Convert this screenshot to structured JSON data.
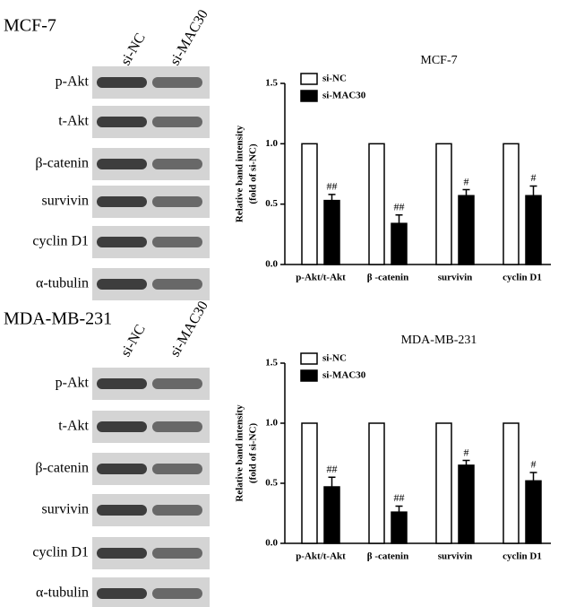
{
  "blots": [
    {
      "title": "MCF-7",
      "lanes": [
        "si-NC",
        "si-MAC30"
      ],
      "proteins": [
        "p-Akt",
        "t-Akt",
        "β-catenin",
        "survivin",
        "cyclin D1",
        "α-tubulin"
      ]
    },
    {
      "title": "MDA-MB-231",
      "lanes": [
        "si-NC",
        "si-MAC30"
      ],
      "proteins": [
        "p-Akt",
        "t-Akt",
        "β-catenin",
        "survivin",
        "cyclin D1",
        "α-tubulin"
      ]
    }
  ],
  "chart_data": [
    {
      "type": "bar",
      "title": "MCF-7",
      "ylabel": [
        "Relative band intensity",
        "(fold of si-NC)"
      ],
      "categories": [
        "p-Akt/t-Akt",
        "β -catenin",
        "survivin",
        "cyclin D1"
      ],
      "series": [
        {
          "name": "si-NC",
          "color": "#ffffff",
          "values": [
            1.0,
            1.0,
            1.0,
            1.0
          ]
        },
        {
          "name": "si-MAC30",
          "color": "#000000",
          "values": [
            0.53,
            0.34,
            0.57,
            0.57
          ],
          "errors": [
            0.05,
            0.07,
            0.05,
            0.08
          ],
          "annotations": [
            "##",
            "##",
            "#",
            "#"
          ]
        }
      ],
      "ylim": [
        0,
        1.5
      ],
      "yticks": [
        {
          "value": 0,
          "label": "0.0"
        },
        {
          "value": 0.5,
          "label": "0.5"
        },
        {
          "value": 1.0,
          "label": "1.0"
        },
        {
          "value": 1.5,
          "label": "1.5"
        }
      ]
    },
    {
      "type": "bar",
      "title": "MDA-MB-231",
      "ylabel": [
        "Relative band intensity",
        "(fold of si-NC)"
      ],
      "categories": [
        "p-Akt/t-Akt",
        "β -catenin",
        "survivin",
        "cyclin D1"
      ],
      "series": [
        {
          "name": "si-NC",
          "color": "#ffffff",
          "values": [
            1.0,
            1.0,
            1.0,
            1.0
          ]
        },
        {
          "name": "si-MAC30",
          "color": "#000000",
          "values": [
            0.47,
            0.26,
            0.65,
            0.52
          ],
          "errors": [
            0.08,
            0.05,
            0.04,
            0.07
          ],
          "annotations": [
            "##",
            "##",
            "#",
            "#"
          ]
        }
      ],
      "ylim": [
        0,
        1.5
      ],
      "yticks": [
        {
          "value": 0,
          "label": "0.0"
        },
        {
          "value": 0.5,
          "label": "0.5"
        },
        {
          "value": 1.0,
          "label": "1.0"
        },
        {
          "value": 1.5,
          "label": "1.5"
        }
      ]
    }
  ]
}
